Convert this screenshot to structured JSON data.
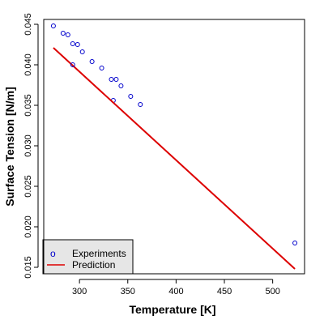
{
  "chart_data": {
    "type": "scatter",
    "xlabel": "Temperature [K]",
    "ylabel": "Surface Tension [N/m]",
    "xlim": [
      263,
      533
    ],
    "ylim": [
      0.0142,
      0.0456
    ],
    "x_ticks": [
      300,
      350,
      400,
      450,
      500
    ],
    "y_ticks": [
      0.015,
      0.02,
      0.025,
      0.03,
      0.035,
      0.04,
      0.045
    ],
    "grid": false,
    "legend_position": "bottom-left",
    "series": [
      {
        "name": "Experiments",
        "kind": "points",
        "color": "#0000cc",
        "marker": "open-circle",
        "x": [
          273,
          283,
          288,
          293,
          298,
          303,
          313,
          323,
          333,
          335,
          338,
          343,
          353,
          363,
          523
        ],
        "y": [
          0.0448,
          0.0439,
          0.0437,
          0.0426,
          0.0425,
          0.0416,
          0.0404,
          0.0396,
          0.0382,
          0.0356,
          0.0382,
          0.0374,
          0.0361,
          0.0351,
          0.018
        ]
      },
      {
        "name": "Prediction",
        "kind": "line",
        "color": "#dd0000",
        "x": [
          273,
          523
        ],
        "y": [
          0.0421,
          0.0148
        ]
      }
    ]
  },
  "extra_point": {
    "x": 293,
    "y": 0.04
  }
}
